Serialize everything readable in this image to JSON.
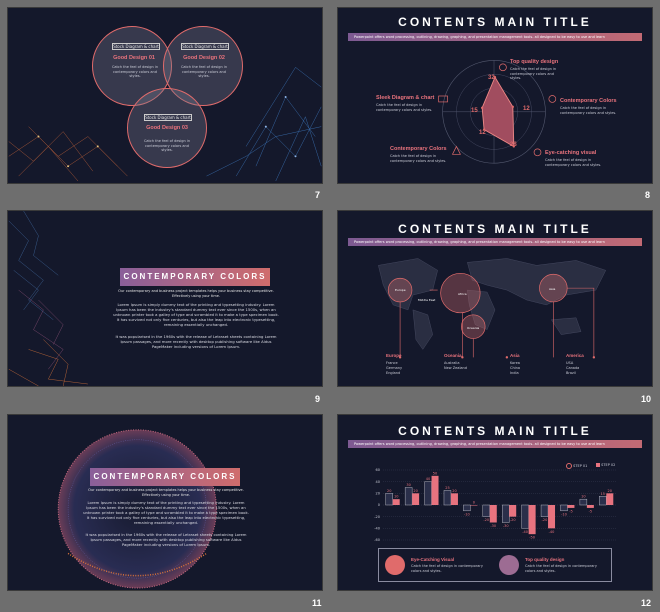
{
  "slides": {
    "s7": {
      "number": "7",
      "circles": [
        {
          "tag": "Stock Diagram & chart",
          "title": "Good Design 01",
          "text": "Catch the feel of design in contemporary colors and styles."
        },
        {
          "tag": "Stock Diagram & chart",
          "title": "Good Design 02",
          "text": "Catch the feel of design in contemporary colors and styles."
        },
        {
          "tag": "Stock Diagram & chart",
          "title": "Good Design 03",
          "text": "Catch the feel of design in contemporary colors and styles."
        }
      ]
    },
    "s8": {
      "number": "8",
      "title": "CONTENTS MAIN TITLE",
      "bar": "Powerpoint  offers word processing, outlining, drawing, graphing, and presentation management tools- all designed to be easy to use and learn",
      "labels": [
        {
          "title": "Top quality design",
          "text": "Catch the feel of design in contemporary colors and styles."
        },
        {
          "title": "Contemporary Colors",
          "text": "Catch the feel of design in contemporary colors and styles."
        },
        {
          "title": "Eye-catching visual",
          "text": "Catch the feel of design in contemporary colors and styles."
        },
        {
          "title": "Contemporary Colors",
          "text": "Catch the feel of design in contemporary colors and styles."
        },
        {
          "title": "Sleek Diagram & chart",
          "text": "Catch the feel of design in contemporary colors and styles."
        }
      ],
      "values": [
        "32",
        "12",
        "28",
        "12",
        "15"
      ]
    },
    "s9": {
      "number": "9",
      "title": "CONTEMPORARY COLORS",
      "subtitle": "Our contemporary and business project templates helps your business stay competitive. Effectively using your time.",
      "p1": "Lorem Ipsum is simply dummy text of the printing and typesetting industry. Lorem Ipsum has been the industry's standard dummy text ever since the 1500s, when an unknown printer took a galley of type and scrambled it to make a type specimen book. It has survived not only five centuries, but also the leap into electronic typesetting, remaining essentially unchanged.",
      "p2": "It was popularised in the 1960s with the release of Letraset sheets containing Lorem Ipsum passages, and more recently with desktop publishing software like Aldus PageMaker including versions of Lorem Ipsum."
    },
    "s10": {
      "number": "10",
      "title": "CONTENTS MAIN TITLE",
      "bar": "Powerpoint  offers word processing, outlining, drawing, graphing, and presentation management tools- all designed to be easy to use and learn",
      "map_labels": [
        "Europe",
        "Middle East",
        "Africa",
        "Oceania",
        "Asia"
      ],
      "regions": [
        {
          "name": "Europe",
          "items": [
            "France",
            "Germany",
            "England"
          ]
        },
        {
          "name": "Oceania",
          "items": [
            "Australia",
            "New Zealand"
          ]
        },
        {
          "name": "Asia",
          "items": [
            "Korea",
            "China",
            "India"
          ]
        },
        {
          "name": "America",
          "items": [
            "USA",
            "Canada",
            "Brazil"
          ]
        }
      ]
    },
    "s11": {
      "number": "11",
      "title": "CONTEMPORARY COLORS",
      "subtitle": "Our contemporary and business project templates helps your business stay competitive. Effectively using your time.",
      "p1": "Lorem Ipsum is simply dummy text of the printing and typesetting industry. Lorem Ipsum has been the industry's standard dummy text ever since the 1500s, when an unknown printer took a galley of type and scrambled it to make a type specimen book. It has survived not only five centuries, but also the leap into electronic typesetting, remaining essentially unchanged.",
      "p2": "It was popularised in the 1960s with the release of Letraset sheets containing Lorem Ipsum passages, and more recently with desktop publishing software like Aldus PageMaker including versions of Lorem Ipsum."
    },
    "s12": {
      "number": "12",
      "title": "CONTENTS MAIN TITLE",
      "bar": "Powerpoint  offers word processing, outlining, drawing, graphing, and presentation management tools- all designed to be easy to use and learn",
      "legend": [
        "STEP 01",
        "STEP 02"
      ],
      "cards": [
        {
          "title": "Eye-Catching Visual",
          "text": "Catch the feel of design in contemporary colors and styles."
        },
        {
          "title": "Top quality design",
          "text": "Catch the feel of design in contemporary colors and styles."
        }
      ]
    }
  },
  "chart_data": {
    "type": "bar",
    "categories": [
      "1",
      "2",
      "3",
      "4",
      "5",
      "6",
      "7",
      "8",
      "9",
      "10",
      "11",
      "12"
    ],
    "series": [
      {
        "name": "STEP 01",
        "values": [
          20,
          30,
          40,
          25,
          -10,
          -20,
          -30,
          -40,
          -20,
          -10,
          10,
          15
        ]
      },
      {
        "name": "STEP 02",
        "values": [
          10,
          20,
          50,
          20,
          0,
          -30,
          -20,
          -50,
          -40,
          -5,
          -5,
          20
        ]
      }
    ],
    "y_ticks": [
      "60",
      "40",
      "20",
      "0",
      "-20",
      "-40",
      "-60"
    ],
    "ylim": [
      -60,
      60
    ],
    "grid": true,
    "legend": "top-right",
    "colors": {
      "s1": "#2a2f4a",
      "s2": "#e8737f"
    }
  },
  "colors": {
    "accent": "#e06b6b",
    "bg": "#14182b",
    "purple": "#7d5a92"
  }
}
